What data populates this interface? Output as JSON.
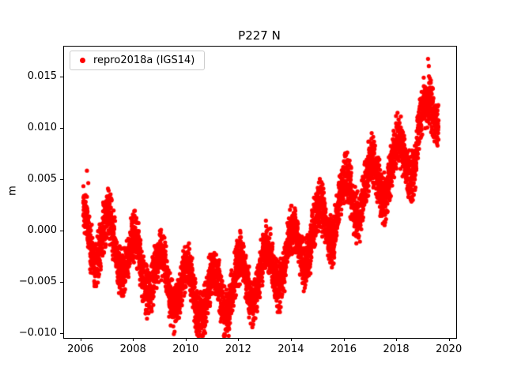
{
  "title": "P227 N",
  "axes": {
    "ylabel": "m"
  },
  "legend": {
    "label": "repro2018a (IGS14)",
    "marker_color": "#ff0000"
  },
  "chart_data": {
    "type": "scatter",
    "title": "P227 N",
    "xlabel": "",
    "ylabel": "m",
    "grid": false,
    "legend_position": "upper left",
    "xlim": [
      2005.35,
      2020.25
    ],
    "ylim": [
      -0.0104,
      0.018
    ],
    "xticks": [
      2006,
      2008,
      2010,
      2012,
      2014,
      2016,
      2018,
      2020
    ],
    "xtick_labels": [
      "2006",
      "2008",
      "2010",
      "2012",
      "2014",
      "2016",
      "2018",
      "2020"
    ],
    "yticks": [
      -0.01,
      -0.005,
      0.0,
      0.005,
      0.01,
      0.015
    ],
    "ytick_labels": [
      "−0.010",
      "−0.005",
      "0.000",
      "0.005",
      "0.010",
      "0.015"
    ],
    "series": [
      {
        "name": "repro2018a (IGS14)",
        "color": "#ff0000",
        "x_start": 2006.08,
        "x_end": 2019.58,
        "samples_per_year": 365,
        "trend_knots": [
          [
            2006.08,
            0.0
          ],
          [
            2007.0,
            -0.0008
          ],
          [
            2008.0,
            -0.0028
          ],
          [
            2009.0,
            -0.0045
          ],
          [
            2010.0,
            -0.0055
          ],
          [
            2010.7,
            -0.0063
          ],
          [
            2011.5,
            -0.0058
          ],
          [
            2012.0,
            -0.005
          ],
          [
            2013.0,
            -0.004
          ],
          [
            2014.0,
            -0.002
          ],
          [
            2015.0,
            0.0
          ],
          [
            2016.0,
            0.0028
          ],
          [
            2017.0,
            0.0045
          ],
          [
            2018.0,
            0.0065
          ],
          [
            2018.7,
            0.008
          ],
          [
            2019.1,
            0.0105
          ],
          [
            2019.35,
            0.0128
          ],
          [
            2019.58,
            0.0128
          ]
        ],
        "seasonal_amplitude": 0.0024,
        "seasonal_peak_fraction": 0.03,
        "noise_sigma": 0.00115,
        "noise_clip": 0.0026,
        "value_min": -0.0102,
        "value_max": 0.0172,
        "marker_radius_px": 2.6,
        "seed": 1234,
        "outliers": [
          [
            2006.22,
            0.0059
          ],
          [
            2006.27,
            0.0047
          ],
          [
            2019.18,
            0.0168
          ],
          [
            2019.21,
            0.0161
          ]
        ]
      }
    ]
  }
}
